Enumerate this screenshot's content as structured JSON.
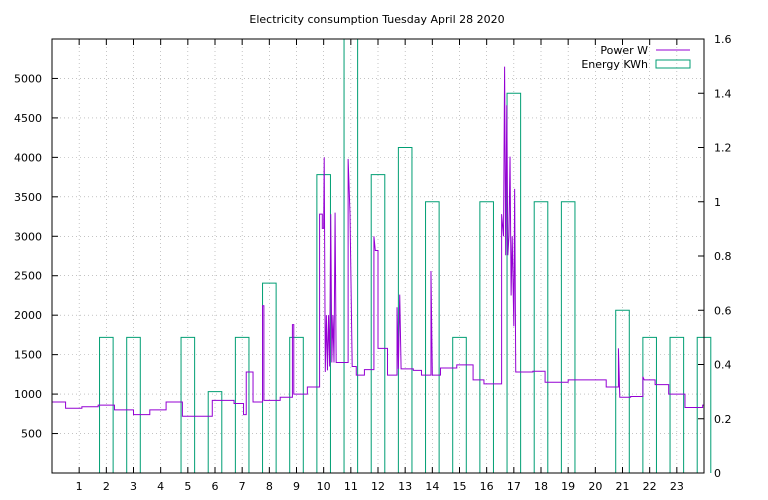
{
  "chart_data": {
    "type": "line",
    "title": "Electricity consumption Tuesday April 28 2020",
    "xlim": [
      0,
      24
    ],
    "x_ticks": [
      1,
      2,
      3,
      4,
      5,
      6,
      7,
      8,
      9,
      10,
      11,
      12,
      13,
      14,
      15,
      16,
      17,
      18,
      19,
      20,
      21,
      22,
      23
    ],
    "ylim_left": [
      0,
      5500
    ],
    "y_ticks_left": [
      500,
      1000,
      1500,
      2000,
      2500,
      3000,
      3500,
      4000,
      4500,
      5000
    ],
    "ylim_right": [
      0,
      1.6
    ],
    "y_ticks_right": [
      "0",
      "0.2",
      "0.4",
      "0.6",
      "0.8",
      "1",
      "1.2",
      "1.4",
      "1.6"
    ],
    "grid": "dotted",
    "legend_position": "top-right",
    "colors": {
      "power": "#9400d3",
      "energy": "#009e73"
    },
    "series": [
      {
        "name": "Energy KWh",
        "axis": "right",
        "style": "steps",
        "hours": [
          0,
          1,
          2,
          3,
          4,
          5,
          6,
          7,
          8,
          9,
          10,
          11,
          12,
          13,
          14,
          15,
          16,
          17,
          18,
          19,
          20,
          21,
          22,
          23
        ],
        "values": [
          0,
          0.5,
          0.5,
          0,
          0.5,
          0.3,
          0.5,
          0.7,
          0.5,
          1.1,
          1.6,
          1.1,
          1.2,
          1.0,
          0.5,
          1.0,
          1.4,
          1.0,
          1.0,
          0,
          0.6,
          0.5,
          0.5,
          0.5
        ]
      },
      {
        "name": "Power W",
        "axis": "left",
        "style": "line",
        "points": [
          [
            0,
            900
          ],
          [
            0.5,
            900
          ],
          [
            0.5,
            820
          ],
          [
            1.1,
            820
          ],
          [
            1.1,
            840
          ],
          [
            1.7,
            840
          ],
          [
            1.7,
            860
          ],
          [
            2.3,
            860
          ],
          [
            2.3,
            800
          ],
          [
            3.0,
            800
          ],
          [
            3.0,
            740
          ],
          [
            3.6,
            740
          ],
          [
            3.6,
            800
          ],
          [
            4.2,
            800
          ],
          [
            4.2,
            900
          ],
          [
            4.8,
            900
          ],
          [
            4.8,
            720
          ],
          [
            5.9,
            720
          ],
          [
            5.9,
            920
          ],
          [
            6.7,
            920
          ],
          [
            6.7,
            880
          ],
          [
            7.05,
            880
          ],
          [
            7.05,
            740
          ],
          [
            7.15,
            740
          ],
          [
            7.15,
            1280
          ],
          [
            7.4,
            1280
          ],
          [
            7.4,
            900
          ],
          [
            7.75,
            900
          ],
          [
            7.75,
            2120
          ],
          [
            7.8,
            2120
          ],
          [
            7.8,
            920
          ],
          [
            8.4,
            920
          ],
          [
            8.4,
            960
          ],
          [
            8.85,
            960
          ],
          [
            8.85,
            1880
          ],
          [
            8.9,
            1880
          ],
          [
            8.9,
            1000
          ],
          [
            9.4,
            1000
          ],
          [
            9.4,
            1090
          ],
          [
            9.85,
            1090
          ],
          [
            9.85,
            3280
          ],
          [
            9.95,
            3280
          ],
          [
            9.95,
            3100
          ],
          [
            10.0,
            3100
          ],
          [
            10.02,
            4000
          ],
          [
            10.06,
            1280
          ],
          [
            10.1,
            2000
          ],
          [
            10.14,
            1300
          ],
          [
            10.18,
            2000
          ],
          [
            10.22,
            1350
          ],
          [
            10.26,
            3280
          ],
          [
            10.3,
            1400
          ],
          [
            10.34,
            2000
          ],
          [
            10.38,
            1400
          ],
          [
            10.42,
            3300
          ],
          [
            10.46,
            1400
          ],
          [
            10.9,
            1400
          ],
          [
            10.9,
            3980
          ],
          [
            10.97,
            3280
          ],
          [
            11.05,
            1350
          ],
          [
            11.2,
            1350
          ],
          [
            11.2,
            1240
          ],
          [
            11.5,
            1240
          ],
          [
            11.5,
            1310
          ],
          [
            11.85,
            1310
          ],
          [
            11.85,
            3000
          ],
          [
            11.9,
            2820
          ],
          [
            12.0,
            2820
          ],
          [
            12.0,
            1580
          ],
          [
            12.35,
            1580
          ],
          [
            12.35,
            1240
          ],
          [
            12.7,
            1240
          ],
          [
            12.7,
            2100
          ],
          [
            12.75,
            1320
          ],
          [
            12.8,
            2260
          ],
          [
            12.85,
            1320
          ],
          [
            13.3,
            1320
          ],
          [
            13.3,
            1300
          ],
          [
            13.6,
            1300
          ],
          [
            13.6,
            1240
          ],
          [
            13.95,
            1240
          ],
          [
            13.95,
            2560
          ],
          [
            14.0,
            1240
          ],
          [
            14.3,
            1240
          ],
          [
            14.3,
            1330
          ],
          [
            14.9,
            1330
          ],
          [
            14.9,
            1370
          ],
          [
            15.5,
            1370
          ],
          [
            15.5,
            1180
          ],
          [
            15.9,
            1180
          ],
          [
            15.9,
            1130
          ],
          [
            16.55,
            1130
          ],
          [
            16.55,
            3280
          ],
          [
            16.62,
            3000
          ],
          [
            16.66,
            5150
          ],
          [
            16.7,
            2760
          ],
          [
            16.74,
            4660
          ],
          [
            16.78,
            2760
          ],
          [
            16.82,
            3000
          ],
          [
            16.86,
            4010
          ],
          [
            16.9,
            2250
          ],
          [
            16.94,
            3000
          ],
          [
            17.0,
            1860
          ],
          [
            17.03,
            3600
          ],
          [
            17.07,
            1280
          ],
          [
            17.7,
            1280
          ],
          [
            17.7,
            1290
          ],
          [
            18.15,
            1290
          ],
          [
            18.15,
            1150
          ],
          [
            19.0,
            1150
          ],
          [
            19.0,
            1180
          ],
          [
            20.4,
            1180
          ],
          [
            20.4,
            1090
          ],
          [
            20.85,
            1090
          ],
          [
            20.85,
            1580
          ],
          [
            20.9,
            960
          ],
          [
            21.3,
            960
          ],
          [
            21.3,
            970
          ],
          [
            21.75,
            970
          ],
          [
            21.75,
            1220
          ],
          [
            21.8,
            1180
          ],
          [
            22.2,
            1180
          ],
          [
            22.2,
            1120
          ],
          [
            22.7,
            1120
          ],
          [
            22.7,
            1000
          ],
          [
            23.3,
            1000
          ],
          [
            23.3,
            830
          ],
          [
            23.95,
            830
          ],
          [
            23.95,
            860
          ],
          [
            24,
            860
          ]
        ]
      }
    ]
  }
}
